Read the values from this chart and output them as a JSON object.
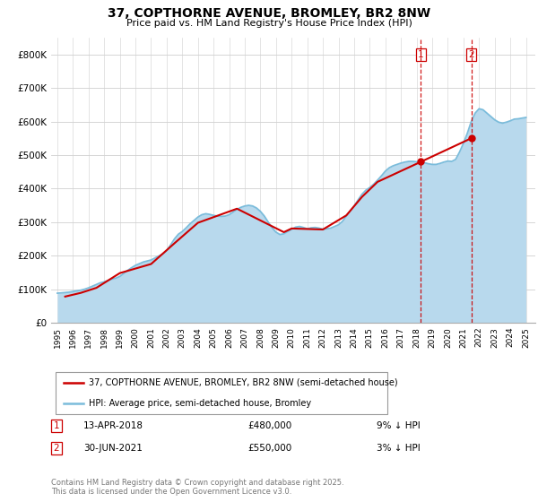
{
  "title": "37, COPTHORNE AVENUE, BROMLEY, BR2 8NW",
  "subtitle": "Price paid vs. HM Land Registry's House Price Index (HPI)",
  "ylim": [
    0,
    850000
  ],
  "yticks": [
    0,
    100000,
    200000,
    300000,
    400000,
    500000,
    600000,
    700000,
    800000
  ],
  "ytick_labels": [
    "£0",
    "£100K",
    "£200K",
    "£300K",
    "£400K",
    "£500K",
    "£600K",
    "£700K",
    "£800K"
  ],
  "hpi_color": "#7bbcdb",
  "hpi_fill_color": "#b8d9ed",
  "price_color": "#cc0000",
  "vline_color": "#cc0000",
  "annotation1": {
    "label": "1",
    "year": 2018.28,
    "price": 480000,
    "text": "13-APR-2018",
    "amount": "£480,000",
    "pct": "9% ↓ HPI"
  },
  "annotation2": {
    "label": "2",
    "year": 2021.5,
    "price": 550000,
    "text": "30-JUN-2021",
    "amount": "£550,000",
    "pct": "3% ↓ HPI"
  },
  "legend_line1": "37, COPTHORNE AVENUE, BROMLEY, BR2 8NW (semi-detached house)",
  "legend_line2": "HPI: Average price, semi-detached house, Bromley",
  "footer": "Contains HM Land Registry data © Crown copyright and database right 2025.\nThis data is licensed under the Open Government Licence v3.0.",
  "background_color": "#ffffff",
  "grid_color": "#d0d0d0",
  "hpi_data_x": [
    1995.0,
    1995.25,
    1995.5,
    1995.75,
    1996.0,
    1996.25,
    1996.5,
    1996.75,
    1997.0,
    1997.25,
    1997.5,
    1997.75,
    1998.0,
    1998.25,
    1998.5,
    1998.75,
    1999.0,
    1999.25,
    1999.5,
    1999.75,
    2000.0,
    2000.25,
    2000.5,
    2000.75,
    2001.0,
    2001.25,
    2001.5,
    2001.75,
    2002.0,
    2002.25,
    2002.5,
    2002.75,
    2003.0,
    2003.25,
    2003.5,
    2003.75,
    2004.0,
    2004.25,
    2004.5,
    2004.75,
    2005.0,
    2005.25,
    2005.5,
    2005.75,
    2006.0,
    2006.25,
    2006.5,
    2006.75,
    2007.0,
    2007.25,
    2007.5,
    2007.75,
    2008.0,
    2008.25,
    2008.5,
    2008.75,
    2009.0,
    2009.25,
    2009.5,
    2009.75,
    2010.0,
    2010.25,
    2010.5,
    2010.75,
    2011.0,
    2011.25,
    2011.5,
    2011.75,
    2012.0,
    2012.25,
    2012.5,
    2012.75,
    2013.0,
    2013.25,
    2013.5,
    2013.75,
    2014.0,
    2014.25,
    2014.5,
    2014.75,
    2015.0,
    2015.25,
    2015.5,
    2015.75,
    2016.0,
    2016.25,
    2016.5,
    2016.75,
    2017.0,
    2017.25,
    2017.5,
    2017.75,
    2018.0,
    2018.25,
    2018.5,
    2018.75,
    2019.0,
    2019.25,
    2019.5,
    2019.75,
    2020.0,
    2020.25,
    2020.5,
    2020.75,
    2021.0,
    2021.25,
    2021.5,
    2021.75,
    2022.0,
    2022.25,
    2022.5,
    2022.75,
    2023.0,
    2023.25,
    2023.5,
    2023.75,
    2024.0,
    2024.25,
    2024.5,
    2024.75,
    2025.0
  ],
  "hpi_data_y": [
    88000,
    89000,
    90000,
    91000,
    93000,
    95000,
    97000,
    100000,
    104000,
    109000,
    114000,
    119000,
    122000,
    126000,
    130000,
    133000,
    138000,
    147000,
    156000,
    164000,
    171000,
    176000,
    181000,
    184000,
    187000,
    193000,
    199000,
    205000,
    215000,
    232000,
    250000,
    264000,
    272000,
    283000,
    295000,
    305000,
    315000,
    322000,
    325000,
    323000,
    320000,
    318000,
    317000,
    318000,
    322000,
    330000,
    338000,
    344000,
    348000,
    350000,
    348000,
    342000,
    332000,
    318000,
    300000,
    283000,
    270000,
    263000,
    265000,
    272000,
    278000,
    285000,
    287000,
    284000,
    280000,
    283000,
    284000,
    282000,
    279000,
    280000,
    282000,
    287000,
    292000,
    302000,
    318000,
    333000,
    348000,
    366000,
    383000,
    395000,
    403000,
    413000,
    425000,
    438000,
    452000,
    462000,
    468000,
    472000,
    476000,
    479000,
    481000,
    481000,
    480000,
    479000,
    477000,
    474000,
    472000,
    472000,
    475000,
    479000,
    482000,
    481000,
    487000,
    509000,
    535000,
    565000,
    600000,
    625000,
    638000,
    635000,
    625000,
    615000,
    605000,
    598000,
    595000,
    598000,
    602000,
    607000,
    608000,
    610000,
    612000
  ],
  "price_data_x": [
    1995.5,
    1996.5,
    1997.5,
    1999.0,
    2001.0,
    2002.5,
    2004.0,
    2006.5,
    2009.5,
    2010.0,
    2012.0,
    2013.5,
    2014.5,
    2015.5,
    2018.28,
    2021.5
  ],
  "price_data_y": [
    78000,
    89000,
    104000,
    148000,
    175000,
    237000,
    298000,
    340000,
    270000,
    281000,
    278000,
    320000,
    375000,
    420000,
    480000,
    550000
  ]
}
